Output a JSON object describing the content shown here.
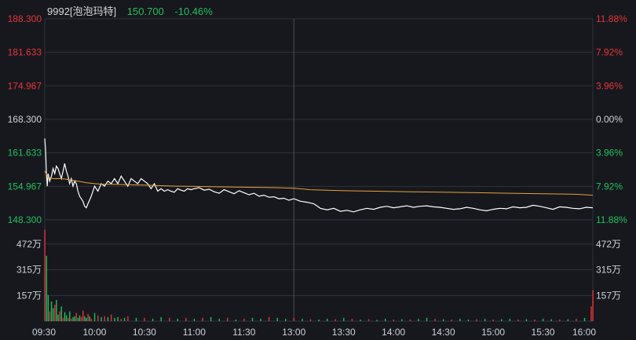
{
  "header": {
    "symbol": "9992[泡泡玛特]",
    "price": "150.700",
    "change_pct": "-10.46%"
  },
  "colors": {
    "background": "#16181d",
    "grid": "#2e323a",
    "up": "#e8333a",
    "down": "#20c060",
    "neutral_text": "#cfd3da",
    "price_line": "#ffffff",
    "avg_line": "#e6a23c"
  },
  "chart_data": {
    "type": "line",
    "title": "",
    "x_ticks": [
      "09:30",
      "10:00",
      "10:30",
      "11:00",
      "11:30",
      "13:00",
      "13:30",
      "14:00",
      "14:30",
      "15:00",
      "15:30",
      "16:00"
    ],
    "price_axis": {
      "ylim": [
        148.3,
        188.3
      ],
      "ticks": [
        "188.300",
        "181.633",
        "174.967",
        "168.300",
        "161.633",
        "154.967",
        "148.300"
      ],
      "tick_values": [
        188.3,
        181.633,
        174.967,
        168.3,
        161.633,
        154.967,
        148.3
      ],
      "tick_colors": [
        "up",
        "up",
        "up",
        "neutral",
        "down",
        "down",
        "down"
      ]
    },
    "pct_axis": {
      "ticks": [
        "11.88%",
        "7.92%",
        "3.96%",
        "0.00%",
        "3.96%",
        "7.92%",
        "11.88%"
      ],
      "tick_colors": [
        "up",
        "up",
        "up",
        "neutral",
        "down",
        "down",
        "down"
      ]
    },
    "volume_axis": {
      "ticks": [
        "472万",
        "315万",
        "157万"
      ],
      "tick_values": [
        472,
        315,
        157
      ],
      "ylim": [
        0,
        620
      ]
    },
    "series": [
      {
        "name": "price",
        "x": [
          0,
          0.5,
          1,
          1.5,
          2,
          3,
          4,
          5,
          6,
          7,
          8,
          9,
          10,
          11,
          12,
          13,
          14,
          15,
          16,
          17,
          18,
          19,
          20,
          21,
          22,
          23,
          24,
          25,
          26,
          28,
          30,
          32,
          34,
          36,
          38,
          40,
          42,
          44,
          46,
          48,
          50,
          52,
          54,
          56,
          58,
          60,
          62,
          64,
          66,
          68,
          70,
          72,
          74,
          76,
          78,
          80,
          82,
          84,
          86,
          88,
          90,
          93,
          96,
          99,
          102,
          105,
          108,
          111,
          114,
          117,
          120,
          123,
          126,
          129,
          132,
          135,
          138,
          141,
          144,
          147,
          150,
          154,
          158,
          162,
          166,
          170,
          174,
          178,
          182,
          186,
          190,
          194,
          198,
          202,
          206,
          210,
          214,
          218,
          222,
          226,
          230,
          234,
          238,
          242,
          246,
          250,
          254,
          258,
          262,
          266,
          270,
          274,
          278,
          282,
          286,
          290,
          294,
          298,
          302,
          306,
          310,
          314,
          318,
          322,
          326,
          330
        ],
        "values": [
          164.5,
          162.0,
          157.5,
          155.0,
          157.5,
          156.0,
          157.0,
          158.5,
          157.5,
          159.0,
          158.5,
          157.5,
          156.5,
          158.0,
          159.5,
          158.0,
          157.0,
          155.5,
          156.5,
          155.0,
          156.0,
          155.5,
          154.0,
          153.0,
          152.5,
          152.0,
          151.0,
          150.7,
          151.5,
          153.0,
          155.0,
          154.0,
          155.5,
          155.0,
          156.0,
          155.5,
          156.5,
          155.5,
          157.0,
          156.0,
          155.0,
          156.5,
          156.0,
          155.5,
          156.5,
          156.0,
          155.5,
          154.5,
          155.5,
          154.0,
          154.5,
          154.0,
          154.3,
          154.0,
          153.8,
          154.5,
          154.2,
          154.0,
          154.5,
          154.3,
          154.5,
          154.7,
          154.2,
          154.4,
          153.9,
          153.6,
          154.3,
          153.9,
          153.5,
          154.1,
          153.7,
          153.3,
          153.6,
          153.0,
          153.2,
          152.8,
          152.9,
          152.5,
          152.6,
          152.2,
          152.5,
          152.0,
          151.8,
          151.5,
          150.6,
          150.3,
          150.6,
          150.0,
          150.2,
          149.9,
          150.3,
          150.6,
          150.4,
          150.8,
          151.0,
          150.7,
          150.9,
          151.1,
          150.8,
          151.0,
          151.1,
          150.9,
          150.8,
          150.6,
          150.4,
          150.5,
          150.8,
          150.6,
          150.3,
          150.1,
          150.4,
          150.6,
          150.5,
          150.9,
          150.7,
          150.8,
          151.2,
          151.0,
          150.7,
          150.4,
          150.9,
          150.8,
          150.6,
          150.5,
          150.8,
          150.7
        ]
      },
      {
        "name": "avg",
        "x": [
          0,
          2,
          5,
          10,
          15,
          20,
          25,
          30,
          35,
          40,
          50,
          60,
          70,
          80,
          90,
          100,
          120,
          140,
          150,
          160,
          180,
          200,
          220,
          240,
          260,
          280,
          300,
          320,
          330
        ],
        "values": [
          158.0,
          156.8,
          156.5,
          156.5,
          156.3,
          156.0,
          155.7,
          155.5,
          155.4,
          155.4,
          155.3,
          155.2,
          155.1,
          155.0,
          154.95,
          154.9,
          154.8,
          154.7,
          154.6,
          154.3,
          154.1,
          154.0,
          153.9,
          153.8,
          153.7,
          153.6,
          153.5,
          153.4,
          153.2
        ]
      }
    ],
    "volume": {
      "minutes": [
        0,
        1,
        2,
        3,
        4,
        5,
        6,
        7,
        8,
        9,
        10,
        11,
        12,
        13,
        14,
        15,
        16,
        17,
        18,
        19,
        20,
        21,
        22,
        23,
        24,
        25,
        26,
        27,
        28,
        30,
        32,
        34,
        36,
        38,
        40,
        42,
        44,
        46,
        48,
        50,
        55,
        60,
        65,
        70,
        75,
        80,
        85,
        90,
        95,
        100,
        105,
        110,
        115,
        120,
        125,
        130,
        135,
        140,
        145,
        150,
        155,
        160,
        165,
        170,
        175,
        180,
        185,
        190,
        195,
        200,
        205,
        210,
        215,
        220,
        225,
        230,
        235,
        240,
        245,
        250,
        255,
        260,
        265,
        270,
        275,
        280,
        285,
        290,
        295,
        300,
        305,
        310,
        315,
        320,
        325,
        329,
        330
      ],
      "values": [
        560,
        400,
        160,
        60,
        120,
        80,
        100,
        130,
        40,
        60,
        90,
        20,
        55,
        35,
        20,
        60,
        15,
        25,
        30,
        50,
        20,
        35,
        25,
        65,
        30,
        20,
        45,
        30,
        15,
        50,
        35,
        25,
        30,
        25,
        40,
        20,
        25,
        15,
        20,
        30,
        20,
        20,
        15,
        25,
        20,
        15,
        20,
        15,
        20,
        25,
        15,
        20,
        10,
        15,
        20,
        15,
        25,
        20,
        15,
        20,
        15,
        12,
        10,
        15,
        12,
        20,
        15,
        10,
        12,
        8,
        15,
        10,
        12,
        10,
        15,
        20,
        15,
        12,
        10,
        15,
        10,
        12,
        15,
        10,
        12,
        15,
        10,
        12,
        10,
        15,
        12,
        10,
        12,
        15,
        20,
        90,
        190
      ],
      "direction": [
        1,
        -1,
        -1,
        1,
        -1,
        -1,
        1,
        -1,
        -1,
        1,
        -1,
        1,
        -1,
        -1,
        1,
        -1,
        1,
        -1,
        -1,
        1,
        -1,
        -1,
        1,
        1,
        -1,
        -1,
        1,
        -1,
        1,
        -1,
        1,
        -1,
        1,
        -1,
        1,
        -1,
        -1,
        1,
        -1,
        1,
        -1,
        1,
        -1,
        -1,
        1,
        -1,
        1,
        -1,
        1,
        -1,
        -1,
        1,
        -1,
        1,
        -1,
        -1,
        1,
        -1,
        -1,
        1,
        -1,
        1,
        -1,
        -1,
        1,
        -1,
        1,
        -1,
        1,
        -1,
        -1,
        1,
        -1,
        1,
        -1,
        -1,
        1,
        -1,
        1,
        -1,
        -1,
        1,
        -1,
        1,
        -1,
        -1,
        1,
        -1,
        1,
        -1,
        -1,
        1,
        -1,
        1,
        -1,
        1,
        1
      ]
    }
  }
}
